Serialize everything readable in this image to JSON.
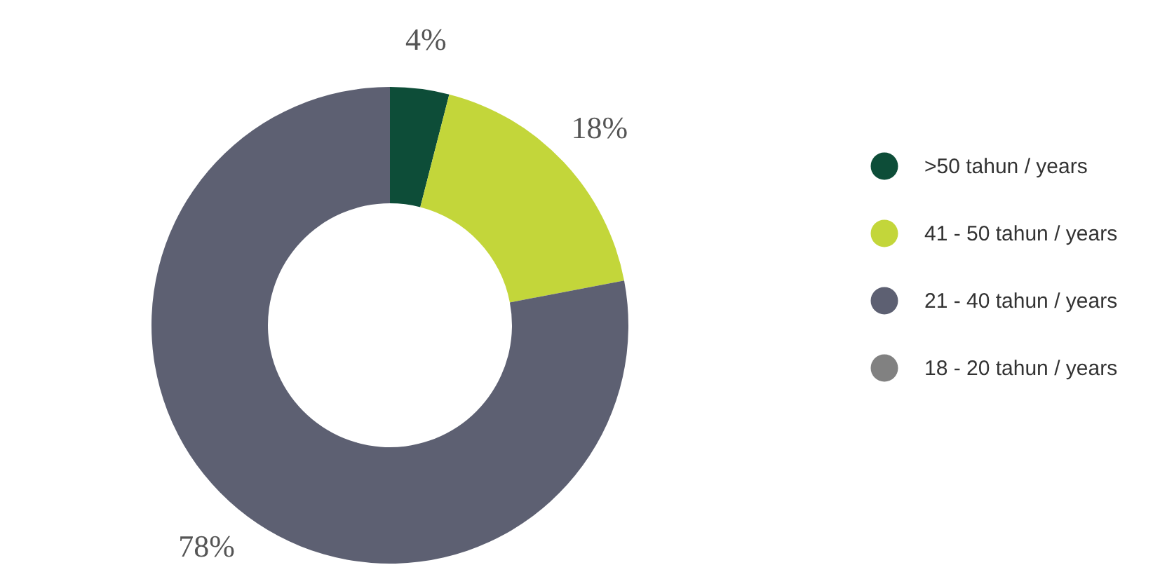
{
  "chart_data": {
    "type": "donut",
    "categories": [
      ">50 tahun / years",
      "41 - 50 tahun / years",
      "21 - 40 tahun / years",
      "18 - 20 tahun / years"
    ],
    "values": [
      4,
      18,
      78,
      0
    ],
    "colors": [
      "#0d4d38",
      "#c3d63a",
      "#5d6072",
      "#818181"
    ],
    "value_labels": [
      "4%",
      "18%",
      "78%",
      null
    ],
    "legend": "right"
  }
}
